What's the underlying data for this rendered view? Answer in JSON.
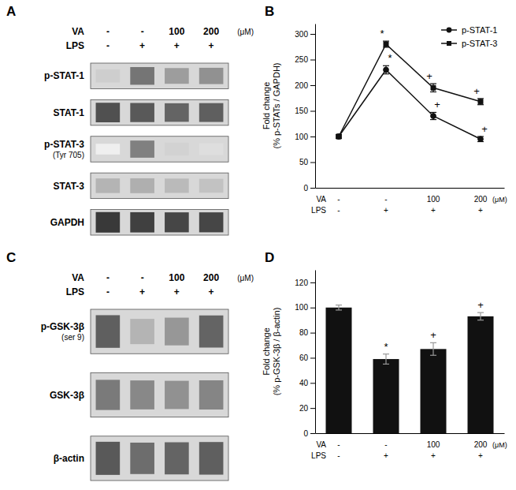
{
  "chart_data": [
    {
      "type": "blot",
      "title": "A",
      "categories": [
        "-",
        "-",
        "100",
        "200"
      ],
      "categories_2": [
        "-",
        "+",
        "+",
        "+"
      ],
      "category_titles": [
        "VA",
        "LPS"
      ],
      "unit_label": "(μM)",
      "series": [
        {
          "name": "p-STAT-1",
          "values": [
            0.3,
            0.62,
            0.48,
            0.52
          ]
        },
        {
          "name": "STAT-1",
          "values": [
            0.75,
            0.72,
            0.68,
            0.7
          ]
        },
        {
          "name": "p-STAT-3\n(Tyr 705)",
          "values": [
            0.12,
            0.58,
            0.28,
            0.22
          ]
        },
        {
          "name": "STAT-3",
          "values": [
            0.4,
            0.42,
            0.38,
            0.35
          ]
        },
        {
          "name": "GAPDH",
          "values": [
            0.82,
            0.8,
            0.78,
            0.78
          ]
        }
      ]
    },
    {
      "type": "line",
      "title": "B",
      "categories": [
        "-",
        "-",
        "100",
        "200"
      ],
      "categories_2": [
        "-",
        "+",
        "+",
        "+"
      ],
      "category_titles": [
        "VA",
        "LPS"
      ],
      "unit_label": "(μM)",
      "ylabel": "Fold change\n(% p-STATs / GAPDH)",
      "ylim": [
        0,
        320
      ],
      "yticks": [
        0,
        50,
        100,
        150,
        200,
        250,
        300
      ],
      "legend": "upper right",
      "series": [
        {
          "name": "p-STAT-1",
          "color": "#111111",
          "marker": "circle",
          "values": [
            100,
            230,
            140,
            95
          ],
          "errors": [
            3,
            8,
            7,
            5
          ],
          "annotations": [
            null,
            "*",
            "+",
            "+"
          ]
        },
        {
          "name": "p-STAT-3",
          "color": "#111111",
          "marker": "square",
          "values": [
            100,
            280,
            195,
            168
          ],
          "errors": [
            4,
            6,
            8,
            6
          ],
          "annotations": [
            null,
            "*",
            "+",
            "+"
          ]
        }
      ]
    },
    {
      "type": "blot",
      "title": "C",
      "categories": [
        "-",
        "-",
        "100",
        "200"
      ],
      "categories_2": [
        "-",
        "+",
        "+",
        "+"
      ],
      "category_titles": [
        "VA",
        "LPS"
      ],
      "unit_label": "(μM)",
      "series": [
        {
          "name": "p-GSK-3β\n(ser 9)",
          "values": [
            0.7,
            0.4,
            0.5,
            0.68
          ]
        },
        {
          "name": "GSK-3β",
          "values": [
            0.6,
            0.55,
            0.52,
            0.56
          ]
        },
        {
          "name": "β-actin",
          "values": [
            0.72,
            0.65,
            0.68,
            0.7
          ]
        }
      ]
    },
    {
      "type": "bar",
      "title": "D",
      "categories": [
        "-",
        "-",
        "100",
        "200"
      ],
      "categories_2": [
        "-",
        "+",
        "+",
        "+"
      ],
      "category_titles": [
        "VA",
        "LPS"
      ],
      "unit_label": "(μM)",
      "ylabel": "Fold change\n(% p-GSK-3β / β-actin)",
      "ylim": [
        0,
        130
      ],
      "yticks": [
        0,
        20,
        40,
        60,
        80,
        100,
        120
      ],
      "color": "#111111",
      "values": [
        100,
        59,
        67,
        93
      ],
      "errors": [
        2,
        4,
        5,
        3
      ],
      "annotations": [
        null,
        "*",
        "+",
        "+"
      ]
    }
  ]
}
